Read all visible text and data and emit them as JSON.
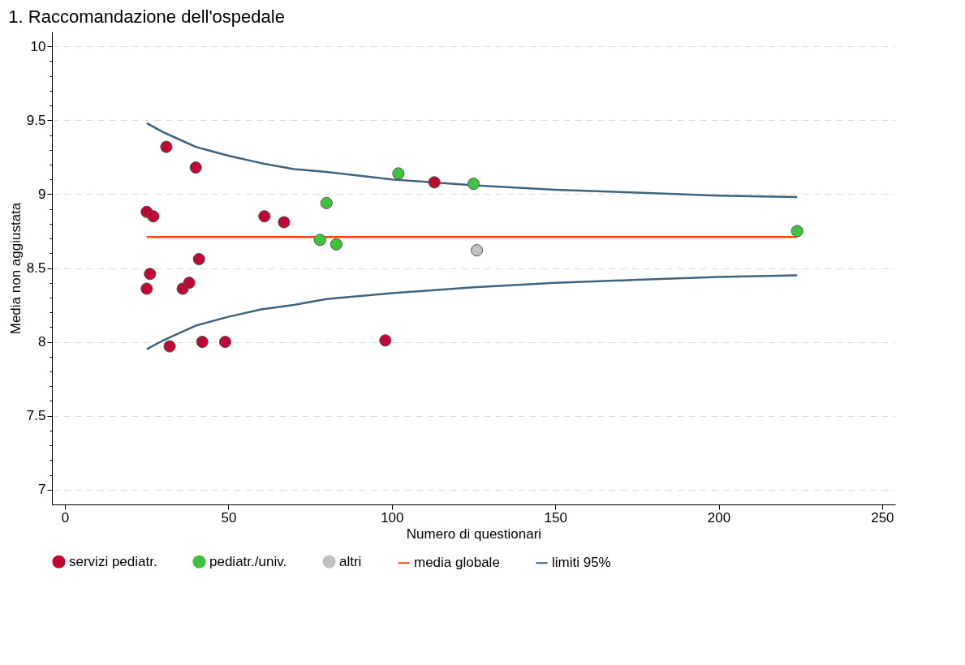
{
  "chart_data": {
    "type": "scatter",
    "title": "1. Raccomandazione dell'ospedale",
    "xlabel": "Numero di questionari",
    "ylabel": "Media non aggiustata",
    "xlim": [
      -4,
      254
    ],
    "xticks": [
      0,
      50,
      100,
      150,
      200,
      250
    ],
    "ylim": [
      6.9,
      10.1
    ],
    "yticks": [
      7,
      {
        "value": 7.1,
        "label": null
      },
      {
        "value": 7.2,
        "label": null
      },
      {
        "value": 7.3,
        "label": null
      },
      {
        "value": 7.4,
        "label": null
      },
      7.5,
      {
        "value": 7.6,
        "label": null
      },
      {
        "value": 7.7,
        "label": null
      },
      {
        "value": 7.8,
        "label": null
      },
      {
        "value": 7.9,
        "label": null
      },
      8,
      {
        "value": 8.1,
        "label": null
      },
      {
        "value": 8.2,
        "label": null
      },
      {
        "value": 8.3,
        "label": null
      },
      {
        "value": 8.4,
        "label": null
      },
      8.5,
      {
        "value": 8.6,
        "label": null
      },
      {
        "value": 8.7,
        "label": null
      },
      {
        "value": 8.8,
        "label": null
      },
      {
        "value": 8.9,
        "label": null
      },
      9,
      {
        "value": 9.1,
        "label": null
      },
      {
        "value": 9.2,
        "label": null
      },
      {
        "value": 9.3,
        "label": null
      },
      {
        "value": 9.4,
        "label": null
      },
      9.5,
      {
        "value": 9.6,
        "label": null
      },
      {
        "value": 9.7,
        "label": null
      },
      {
        "value": 9.8,
        "label": null
      },
      {
        "value": 9.9,
        "label": null
      },
      10
    ],
    "grid": "y",
    "legend": "bottom",
    "marker": "circle",
    "series": [
      {
        "name": "servizi pediatr.",
        "color": "#c10534",
        "x": [
          31,
          40,
          25,
          27,
          61,
          67,
          41,
          26,
          25,
          36,
          38,
          32,
          42,
          49,
          98,
          113
        ],
        "values": [
          9.32,
          9.18,
          8.88,
          8.85,
          8.85,
          8.81,
          8.56,
          8.46,
          8.36,
          8.36,
          8.4,
          7.97,
          8.0,
          8.0,
          8.01,
          9.08
        ]
      },
      {
        "name": "pediatr./univ.",
        "color": "#3ec33e",
        "x": [
          80,
          78,
          83,
          102,
          125,
          224
        ],
        "values": [
          8.94,
          8.69,
          8.66,
          9.14,
          9.07,
          8.75
        ]
      },
      {
        "name": "altri",
        "color": "#c0c0c0",
        "x": [
          126
        ],
        "values": [
          8.62
        ]
      },
      {
        "name": "media globale",
        "type": "line",
        "color": "#ff4500",
        "marker": "none",
        "x": [
          25,
          224
        ],
        "values": [
          8.71,
          8.71
        ]
      },
      {
        "name": "limiti 95%",
        "type": "line",
        "color": "#3e6480",
        "marker": "none",
        "x": [
          25,
          30,
          35,
          40,
          50,
          60,
          70,
          80,
          100,
          125,
          150,
          175,
          200,
          224
        ],
        "values": [
          9.48,
          9.42,
          9.37,
          9.32,
          9.26,
          9.21,
          9.17,
          9.15,
          9.1,
          9.06,
          9.03,
          9.01,
          8.99,
          8.98
        ]
      },
      {
        "type": "line",
        "color": "#3e6480",
        "marker": "none",
        "x": [
          25,
          30,
          35,
          40,
          50,
          60,
          70,
          80,
          100,
          125,
          150,
          175,
          200,
          224
        ],
        "values": [
          7.95,
          8.01,
          8.06,
          8.11,
          8.17,
          8.22,
          8.25,
          8.29,
          8.33,
          8.37,
          8.4,
          8.42,
          8.44,
          8.45
        ]
      }
    ]
  }
}
